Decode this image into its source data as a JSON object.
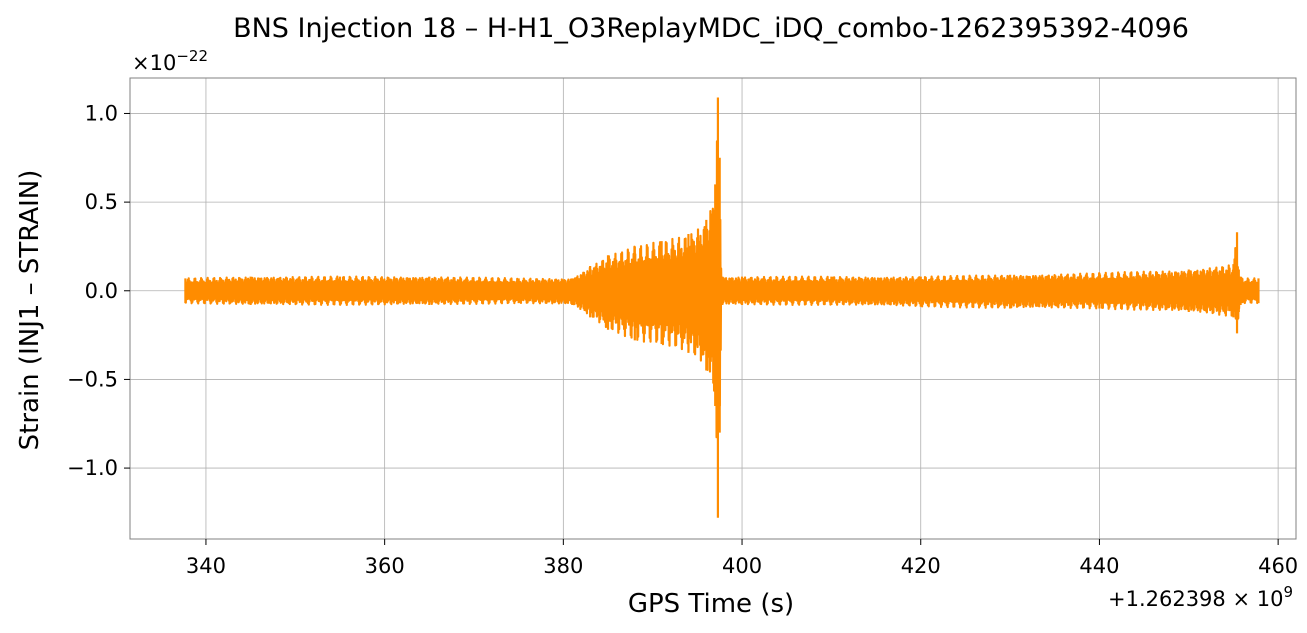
{
  "chart_data": {
    "type": "line",
    "title": "BNS Injection 18 – H-H1_O3ReplayMDC_iDQ_combo-1262395392-4096",
    "xlabel": "GPS Time (s)",
    "ylabel": "Strain (INJ1 – STRAIN)",
    "x_offset_text": "+1.262398 × 10",
    "x_offset_exp": "9",
    "y_scale_text": "×10",
    "y_scale_exp": "−22",
    "xlim": [
      331.5,
      462
    ],
    "ylim": [
      -1.4,
      1.2
    ],
    "xticks": [
      340,
      360,
      380,
      400,
      420,
      440,
      460
    ],
    "xtick_labels": [
      "340",
      "360",
      "380",
      "400",
      "420",
      "440",
      "460"
    ],
    "yticks": [
      1.0,
      0.5,
      0.0,
      -0.5,
      -1.0
    ],
    "ytick_labels": [
      "1.0",
      "0.5",
      "0.0",
      "−0.5",
      "−1.0"
    ],
    "grid": true,
    "series": [
      {
        "color": "#ff8c00",
        "envelope": {
          "x": [
            337.7,
            345,
            355,
            365,
            375,
            381,
            383,
            385,
            388,
            391,
            394,
            396,
            397.0,
            397.3,
            397.5,
            397.7,
            397.8,
            400,
            410,
            420,
            430,
            440,
            450,
            455,
            455.4,
            455.6,
            455.8,
            456,
            457.8
          ],
          "y_max": [
            0.07,
            0.08,
            0.08,
            0.08,
            0.07,
            0.07,
            0.14,
            0.2,
            0.25,
            0.28,
            0.32,
            0.4,
            0.6,
            1.09,
            0.75,
            0.08,
            0.08,
            0.08,
            0.08,
            0.08,
            0.09,
            0.1,
            0.12,
            0.15,
            0.33,
            0.12,
            0.08,
            0.07,
            0.07
          ],
          "y_min": [
            -0.07,
            -0.08,
            -0.08,
            -0.08,
            -0.07,
            -0.08,
            -0.15,
            -0.22,
            -0.28,
            -0.3,
            -0.35,
            -0.45,
            -0.65,
            -1.28,
            -0.8,
            -0.08,
            -0.08,
            -0.08,
            -0.08,
            -0.09,
            -0.1,
            -0.1,
            -0.12,
            -0.15,
            -0.24,
            -0.12,
            -0.08,
            -0.07,
            -0.07
          ]
        }
      }
    ]
  }
}
